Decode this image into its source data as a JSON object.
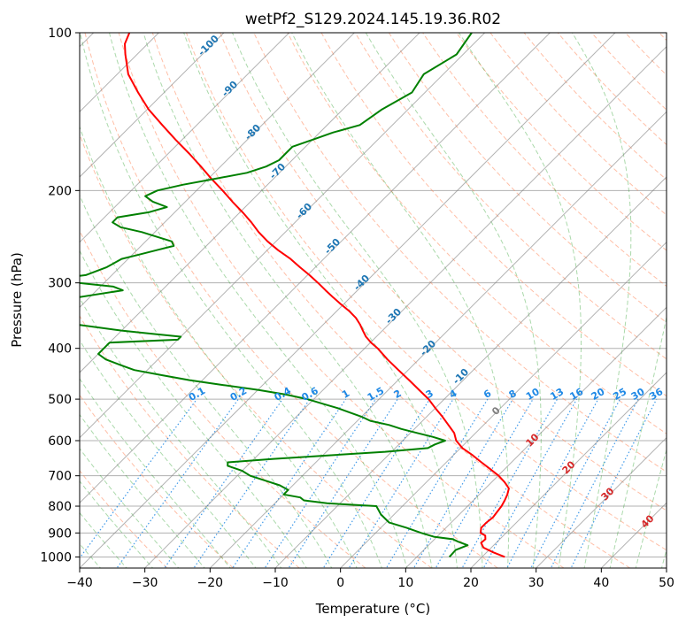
{
  "chart_data": {
    "type": "line",
    "title": "wetPf2_S129.2024.145.19.36.R02",
    "xlabel": "Temperature (°C)",
    "ylabel": "Pressure (hPa)",
    "xlim": [
      -40,
      50
    ],
    "ylim": [
      1050,
      100
    ],
    "y_scale": "log",
    "x_ticks": [
      -40,
      -30,
      -20,
      -10,
      0,
      10,
      20,
      30,
      40,
      50
    ],
    "y_ticks": [
      100,
      200,
      300,
      400,
      500,
      600,
      700,
      800,
      900,
      1000
    ],
    "skew": 45,
    "grid": true,
    "legend": "none",
    "colors": {
      "temperature": "#ff0000",
      "dewpoint": "#008000",
      "isotherm": "#808080",
      "dry_adiabat": "#ff7f50",
      "moist_adiabat": "#2ca02c",
      "mixing_ratio": "#1e88e5",
      "wetbulb_label": "#d62728",
      "wetbulb_zero_label": "#808080",
      "moist_label": "#1f77b4",
      "mixing_label": "#1e88e5"
    },
    "series": [
      {
        "key": "temperature",
        "pressure": [
          1000,
          980,
          960,
          940,
          925,
          910,
          900,
          880,
          860,
          840,
          820,
          800,
          790,
          780,
          760,
          740,
          720,
          700,
          680,
          660,
          640,
          620,
          600,
          580,
          560,
          540,
          520,
          500,
          480,
          460,
          440,
          420,
          400,
          390,
          380,
          370,
          360,
          350,
          340,
          330,
          320,
          310,
          300,
          290,
          280,
          270,
          260,
          250,
          240,
          230,
          220,
          210,
          200,
          190,
          180,
          170,
          160,
          150,
          140,
          130,
          120,
          110,
          105,
          100
        ],
        "temperature": [
          23.5,
          21.0,
          18.8,
          17.7,
          17.8,
          17.2,
          16.1,
          15.4,
          15.4,
          15.6,
          15.4,
          15.2,
          15.0,
          14.8,
          14.3,
          13.6,
          12.0,
          10.1,
          7.8,
          5.4,
          3.0,
          0.3,
          -1.8,
          -3.3,
          -5.4,
          -7.6,
          -10.0,
          -12.4,
          -15.3,
          -18.3,
          -21.5,
          -24.8,
          -28.0,
          -29.9,
          -31.6,
          -33.0,
          -34.4,
          -36.0,
          -38.0,
          -40.3,
          -42.6,
          -44.9,
          -47.2,
          -49.7,
          -52.4,
          -55.1,
          -58.3,
          -61.3,
          -64.1,
          -66.7,
          -69.6,
          -72.8,
          -76.0,
          -79.5,
          -83.0,
          -86.8,
          -91.0,
          -95.3,
          -99.8,
          -104.0,
          -108.3,
          -111.8,
          -113.5,
          -114.5
        ]
      },
      {
        "key": "dewpoint",
        "pressure": [
          1000,
          970,
          950,
          935,
          925,
          915,
          900,
          880,
          860,
          830,
          800,
          790,
          780,
          770,
          760,
          745,
          730,
          715,
          700,
          685,
          670,
          660,
          650,
          640,
          630,
          620,
          610,
          600,
          590,
          580,
          570,
          560,
          550,
          540,
          530,
          520,
          510,
          500,
          490,
          480,
          470,
          460,
          450,
          440,
          430,
          420,
          410,
          400,
          390,
          385,
          380,
          375,
          370,
          365,
          360,
          350,
          340,
          330,
          320,
          310,
          305,
          300,
          295,
          290,
          280,
          270,
          265,
          260,
          255,
          250,
          245,
          240,
          235,
          230,
          225,
          220,
          215,
          210,
          205,
          200,
          195,
          190,
          185,
          180,
          175,
          170,
          165,
          160,
          155,
          150,
          140,
          130,
          120,
          110,
          100
        ],
        "temperature": [
          15.0,
          14.9,
          16.0,
          14.0,
          12.8,
          9.5,
          7.0,
          4.0,
          0.5,
          -2.0,
          -4.0,
          -12.0,
          -16.0,
          -17.0,
          -20.0,
          -20.0,
          -22.0,
          -25.0,
          -28.0,
          -30.0,
          -33.0,
          -33.5,
          -27.0,
          -19.0,
          -11.0,
          -5.0,
          -4.5,
          -3.5,
          -6.0,
          -9.0,
          -12.0,
          -14.5,
          -18.0,
          -20.0,
          -22.5,
          -25.0,
          -28.0,
          -31.0,
          -35.0,
          -40.0,
          -46.0,
          -52.0,
          -57.0,
          -62.0,
          -65.0,
          -68.0,
          -70.0,
          -70.0,
          -70.0,
          -60.0,
          -60.0,
          -65.0,
          -70.0,
          -74.0,
          -78.0,
          -80.0,
          -82.0,
          -84.0,
          -82.0,
          -76.0,
          -78.0,
          -84.0,
          -88.0,
          -84.0,
          -82.0,
          -81.0,
          -79.0,
          -77.0,
          -75.0,
          -76.0,
          -79.0,
          -82.0,
          -86.0,
          -88.0,
          -88.0,
          -84.0,
          -82.0,
          -85.0,
          -87.0,
          -86.0,
          -83.0,
          -79.0,
          -75.0,
          -73.0,
          -72.0,
          -72.0,
          -72.0,
          -70.0,
          -68.0,
          -65.0,
          -64.0,
          -62.0,
          -63.0,
          -61.0,
          -62.0
        ]
      }
    ],
    "moist_adiabat_labels": [
      "-100",
      "-90",
      "-80",
      "-70",
      "-60",
      "-50",
      "-40",
      "-30",
      "-20",
      "-10"
    ],
    "mixing_ratio_labels": [
      "0.1",
      "0.2",
      "0.4",
      "0.6",
      "1",
      "1.5",
      "2",
      "3",
      "4",
      "6",
      "8",
      "10",
      "13",
      "16",
      "20",
      "25",
      "30",
      "36"
    ],
    "mixing_ratio_values": [
      0.1,
      0.2,
      0.4,
      0.6,
      1,
      1.5,
      2,
      3,
      4,
      6,
      8,
      10,
      13,
      16,
      20,
      25,
      30,
      36
    ],
    "wet_bulb_labels": [
      "0",
      "10",
      "20",
      "30",
      "40"
    ]
  }
}
